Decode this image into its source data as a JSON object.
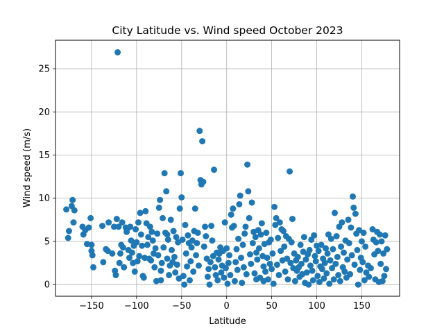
{
  "chart_data": {
    "type": "scatter",
    "title": "City Latitude vs. Wind speed October 2023",
    "xlabel": "Latitude",
    "ylabel": "Wind speed (m/s)",
    "xlim": [
      -190,
      192
    ],
    "ylim": [
      -1.35,
      28.3
    ],
    "xticks": [
      -150,
      -100,
      -50,
      0,
      50,
      100,
      150
    ],
    "xtick_labels": [
      "−150",
      "−100",
      "−50",
      "0",
      "50",
      "100",
      "150"
    ],
    "yticks": [
      0,
      5,
      10,
      15,
      20,
      25
    ],
    "ytick_labels": [
      "0",
      "5",
      "10",
      "15",
      "20",
      "25"
    ],
    "grid": true,
    "marker_color": "#1f77b4",
    "series": [
      {
        "values": [
          [
            -178,
            8.7
          ],
          [
            -176,
            5.4
          ],
          [
            -175,
            6.2
          ],
          [
            -172,
            9.1
          ],
          [
            -171,
            9.8
          ],
          [
            -169,
            8.6
          ],
          [
            -170,
            7.2
          ],
          [
            -160,
            6.7
          ],
          [
            -159,
            5.8
          ],
          [
            -157,
            6.3
          ],
          [
            -155,
            4.7
          ],
          [
            -153,
            6.6
          ],
          [
            -151,
            7.7
          ],
          [
            -150,
            4.6
          ],
          [
            -149,
            3.4
          ],
          [
            -148,
            2.0
          ],
          [
            -150,
            3.9
          ],
          [
            -138,
            6.8
          ],
          [
            -137,
            2.6
          ],
          [
            -134,
            4.1
          ],
          [
            -132,
            3.9
          ],
          [
            -131,
            7.2
          ],
          [
            -127,
            3.6
          ],
          [
            -125,
            6.7
          ],
          [
            -124,
            1.6
          ],
          [
            -123,
            1.1
          ],
          [
            -121,
            26.9
          ],
          [
            -122,
            7.6
          ],
          [
            -120,
            6.7
          ],
          [
            -119,
            2.5
          ],
          [
            -118,
            3.6
          ],
          [
            -117,
            4.6
          ],
          [
            -116,
            7.2
          ],
          [
            -115,
            4.3
          ],
          [
            -114,
            2.0
          ],
          [
            -112,
            6.6
          ],
          [
            -111,
            6.1
          ],
          [
            -110,
            6.5
          ],
          [
            -109,
            4.0
          ],
          [
            -108,
            3.1
          ],
          [
            -107,
            6.7
          ],
          [
            -106,
            5.1
          ],
          [
            -105,
            3.7
          ],
          [
            -104,
            2.5
          ],
          [
            -103,
            4.5
          ],
          [
            -102,
            1.5
          ],
          [
            -101,
            6.4
          ],
          [
            -100,
            4.9
          ],
          [
            -99,
            2.7
          ],
          [
            -98,
            7.2
          ],
          [
            -97,
            3.3
          ],
          [
            -96,
            8.3
          ],
          [
            -95,
            5.8
          ],
          [
            -94,
            4.5
          ],
          [
            -93,
            1.0
          ],
          [
            -92,
            0.8
          ],
          [
            -91,
            3.1
          ],
          [
            -90,
            8.5
          ],
          [
            -89,
            7.1
          ],
          [
            -88,
            4.6
          ],
          [
            -87,
            5.5
          ],
          [
            -86,
            3.0
          ],
          [
            -85,
            6.7
          ],
          [
            -84,
            2.8
          ],
          [
            -83,
            6.1
          ],
          [
            -82,
            5.1
          ],
          [
            -81,
            3.6
          ],
          [
            -80,
            2.0
          ],
          [
            -79,
            4.2
          ],
          [
            -78,
            0.4
          ],
          [
            -77,
            5.9
          ],
          [
            -76,
            3.4
          ],
          [
            -75,
            8.9
          ],
          [
            -74,
            9.8
          ],
          [
            -73,
            1.6
          ],
          [
            -72,
            2.5
          ],
          [
            -71,
            7.7
          ],
          [
            -70,
            4.3
          ],
          [
            -69,
            12.9
          ],
          [
            -68,
            6.0
          ],
          [
            -67,
            10.8
          ],
          [
            -66,
            3.0
          ],
          [
            -65,
            5.2
          ],
          [
            -64,
            1.1
          ],
          [
            -63,
            2.2
          ],
          [
            -62,
            7.5
          ],
          [
            -61,
            4.0
          ],
          [
            -60,
            2.6
          ],
          [
            -59,
            6.2
          ],
          [
            -58,
            3.2
          ],
          [
            -57,
            1.4
          ],
          [
            -56,
            5.5
          ],
          [
            -55,
            2.3
          ],
          [
            -54,
            4.9
          ],
          [
            -53,
            0.7
          ],
          [
            -52,
            8.8
          ],
          [
            -51,
            12.9
          ],
          [
            -50,
            10.1
          ],
          [
            -49,
            5.2
          ],
          [
            -48,
            1.0
          ],
          [
            -47,
            0.0
          ],
          [
            -46,
            6.9
          ],
          [
            -45,
            3.6
          ],
          [
            -44,
            2.1
          ],
          [
            -43,
            5.7
          ],
          [
            -42,
            4.8
          ],
          [
            -41,
            0.5
          ],
          [
            -40,
            2.7
          ],
          [
            -39,
            4.3
          ],
          [
            -38,
            5.1
          ],
          [
            -37,
            1.5
          ],
          [
            -36,
            6.2
          ],
          [
            -35,
            8.8
          ],
          [
            -34,
            3.4
          ],
          [
            -33,
            4.8
          ],
          [
            -32,
            6.0
          ],
          [
            -31,
            2.2
          ],
          [
            -30,
            17.8
          ],
          [
            -29,
            12.1
          ],
          [
            -28,
            11.6
          ],
          [
            -27,
            16.6
          ],
          [
            -26,
            11.9
          ],
          [
            -25,
            4.4
          ],
          [
            -24,
            6.7
          ],
          [
            -23,
            5.6
          ],
          [
            -22,
            3.0
          ],
          [
            -21,
            0.9
          ],
          [
            -20,
            1.8
          ],
          [
            -19,
            0.0
          ],
          [
            -18,
            2.6
          ],
          [
            -17,
            6.8
          ],
          [
            -16,
            5.1
          ],
          [
            -15,
            3.3
          ],
          [
            -14,
            13.3
          ],
          [
            -13,
            2.0
          ],
          [
            -12,
            1.1
          ],
          [
            -11,
            3.7
          ],
          [
            -10,
            0.5
          ],
          [
            -9,
            2.9
          ],
          [
            -8,
            3.6
          ],
          [
            -7,
            4.3
          ],
          [
            -6,
            1.4
          ],
          [
            -5,
            2.2
          ],
          [
            -4,
            3.9
          ],
          [
            -3,
            0.8
          ],
          [
            -2,
            7.2
          ],
          [
            -1,
            1.9
          ],
          [
            0,
            4.2
          ],
          [
            1,
            0.1
          ],
          [
            2,
            2.5
          ],
          [
            3,
            3.4
          ],
          [
            4,
            1.1
          ],
          [
            5,
            8.1
          ],
          [
            6,
            6.6
          ],
          [
            7,
            8.8
          ],
          [
            8,
            6.8
          ],
          [
            9,
            0.4
          ],
          [
            10,
            2.6
          ],
          [
            11,
            4.1
          ],
          [
            12,
            1.7
          ],
          [
            13,
            5.3
          ],
          [
            14,
            9.3
          ],
          [
            15,
            10.3
          ],
          [
            16,
            3.1
          ],
          [
            17,
            0.2
          ],
          [
            18,
            4.6
          ],
          [
            19,
            2.0
          ],
          [
            20,
            5.9
          ],
          [
            21,
            6.7
          ],
          [
            22,
            1.2
          ],
          [
            23,
            13.9
          ],
          [
            24,
            10.8
          ],
          [
            25,
            7.7
          ],
          [
            26,
            3.5
          ],
          [
            27,
            2.4
          ],
          [
            28,
            9.5
          ],
          [
            29,
            4.8
          ],
          [
            30,
            6.1
          ],
          [
            31,
            1.3
          ],
          [
            32,
            5.5
          ],
          [
            33,
            3.7
          ],
          [
            34,
            2.9
          ],
          [
            35,
            6.3
          ],
          [
            36,
            4.2
          ],
          [
            37,
            0.8
          ],
          [
            38,
            5.8
          ],
          [
            39,
            7.1
          ],
          [
            40,
            3.3
          ],
          [
            41,
            2.1
          ],
          [
            42,
            4.7
          ],
          [
            43,
            1.5
          ],
          [
            44,
            6.0
          ],
          [
            45,
            3.1
          ],
          [
            46,
            0.6
          ],
          [
            47,
            4.9
          ],
          [
            48,
            2.4
          ],
          [
            49,
            5.2
          ],
          [
            50,
            1.8
          ],
          [
            51,
            3.6
          ],
          [
            52,
            0.1
          ],
          [
            53,
            9.0
          ],
          [
            54,
            6.9
          ],
          [
            55,
            7.7
          ],
          [
            56,
            2.3
          ],
          [
            57,
            5.4
          ],
          [
            58,
            1.1
          ],
          [
            59,
            7.2
          ],
          [
            60,
            3.9
          ],
          [
            61,
            6.4
          ],
          [
            62,
            2.8
          ],
          [
            63,
            6.2
          ],
          [
            64,
            4.4
          ],
          [
            65,
            1.5
          ],
          [
            66,
            5.6
          ],
          [
            67,
            3.0
          ],
          [
            68,
            0.6
          ],
          [
            69,
            5.3
          ],
          [
            70,
            13.1
          ],
          [
            71,
            2.5
          ],
          [
            72,
            4.9
          ],
          [
            73,
            7.6
          ],
          [
            74,
            1.9
          ],
          [
            75,
            3.6
          ],
          [
            76,
            0.4
          ],
          [
            77,
            2.8
          ],
          [
            78,
            1.6
          ],
          [
            79,
            3.2
          ],
          [
            80,
            2.0
          ],
          [
            81,
            0.9
          ],
          [
            82,
            4.6
          ],
          [
            83,
            2.4
          ],
          [
            84,
            1.2
          ],
          [
            85,
            3.8
          ],
          [
            86,
            5.5
          ],
          [
            87,
            0.2
          ],
          [
            88,
            2.9
          ],
          [
            89,
            1.4
          ],
          [
            90,
            3.5
          ],
          [
            91,
            0.0
          ],
          [
            92,
            4.0
          ],
          [
            93,
            2.2
          ],
          [
            94,
            5.2
          ],
          [
            95,
            1.6
          ],
          [
            96,
            0.5
          ],
          [
            97,
            5.7
          ],
          [
            98,
            3.3
          ],
          [
            99,
            2.7
          ],
          [
            100,
            4.5
          ],
          [
            101,
            1.0
          ],
          [
            102,
            3.9
          ],
          [
            103,
            0.3
          ],
          [
            104,
            2.1
          ],
          [
            105,
            4.6
          ],
          [
            106,
            1.8
          ],
          [
            107,
            3.0
          ],
          [
            108,
            0.7
          ],
          [
            109,
            2.5
          ],
          [
            110,
            4.2
          ],
          [
            111,
            1.3
          ],
          [
            112,
            3.6
          ],
          [
            113,
            5.8
          ],
          [
            114,
            0.1
          ],
          [
            115,
            2.8
          ],
          [
            116,
            5.3
          ],
          [
            117,
            1.9
          ],
          [
            118,
            4.1
          ],
          [
            119,
            0.6
          ],
          [
            120,
            8.3
          ],
          [
            121,
            2.4
          ],
          [
            122,
            5.6
          ],
          [
            123,
            3.2
          ],
          [
            124,
            1.1
          ],
          [
            125,
            6.7
          ],
          [
            126,
            0.4
          ],
          [
            127,
            4.4
          ],
          [
            128,
            7.2
          ],
          [
            129,
            2.0
          ],
          [
            130,
            3.7
          ],
          [
            131,
            1.5
          ],
          [
            132,
            5.1
          ],
          [
            133,
            0.8
          ],
          [
            134,
            2.9
          ],
          [
            135,
            7.5
          ],
          [
            136,
            4.8
          ],
          [
            137,
            1.2
          ],
          [
            138,
            6.6
          ],
          [
            139,
            3.4
          ],
          [
            140,
            10.2
          ],
          [
            141,
            8.9
          ],
          [
            142,
            2.3
          ],
          [
            143,
            8.2
          ],
          [
            144,
            5.9
          ],
          [
            145,
            4.0
          ],
          [
            146,
            0.0
          ],
          [
            147,
            6.3
          ],
          [
            148,
            1.7
          ],
          [
            149,
            3.1
          ],
          [
            150,
            5.0
          ],
          [
            151,
            2.6
          ],
          [
            152,
            6.0
          ],
          [
            153,
            0.5
          ],
          [
            154,
            4.4
          ],
          [
            155,
            1.4
          ],
          [
            157,
            2.2
          ],
          [
            158,
            0.9
          ],
          [
            160,
            1.9
          ],
          [
            162,
            6.4
          ],
          [
            163,
            5.2
          ],
          [
            164,
            3.5
          ],
          [
            165,
            0.6
          ],
          [
            166,
            4.9
          ],
          [
            167,
            6.1
          ],
          [
            168,
            3.9
          ],
          [
            169,
            0.3
          ],
          [
            170,
            5.8
          ],
          [
            171,
            2.4
          ],
          [
            172,
            5.0
          ],
          [
            173,
            0.4
          ],
          [
            174,
            3.6
          ],
          [
            175,
            1.0
          ],
          [
            176,
            5.7
          ],
          [
            177,
            1.8
          ],
          [
            178,
            4.1
          ],
          [
            -66,
            5.8
          ],
          [
            -73,
            0.5
          ],
          [
            41,
            0.4
          ],
          [
            33,
            0.6
          ]
        ]
      }
    ]
  }
}
